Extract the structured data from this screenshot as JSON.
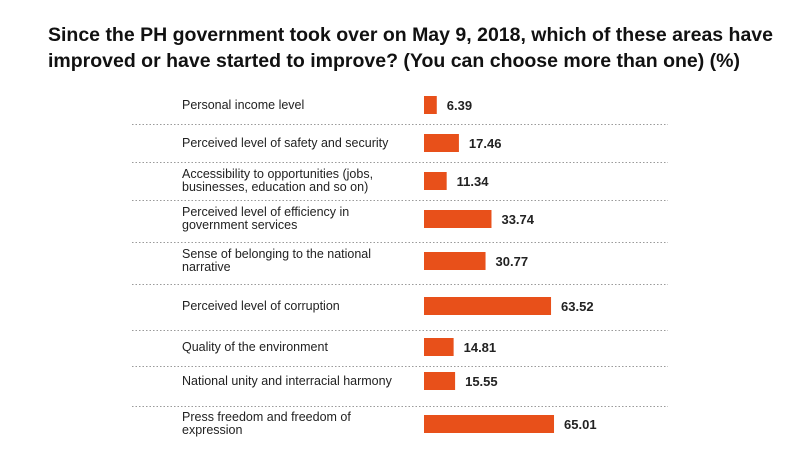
{
  "title": {
    "line1": "Since the PH government took over on May 9, 2018, which of these areas have",
    "line2": "improved or have started to improve? (You can choose more than one) (%)"
  },
  "colors": {
    "bar": "#e8501a",
    "text": "#222222",
    "separator": "#9a9a9a"
  },
  "chart_data": {
    "type": "bar",
    "orientation": "horizontal",
    "categories": [
      [
        "Personal income level"
      ],
      [
        "Perceived level of safety and security"
      ],
      [
        "Accessibility to opportunities (jobs,",
        "businesses, education and so on)"
      ],
      [
        "Perceived level of efficiency in",
        "government services"
      ],
      [
        "Sense of belonging to the national",
        "narrative"
      ],
      [
        "Perceived level of corruption"
      ],
      [
        "Quality of the environment"
      ],
      [
        "National unity and interracial harmony"
      ],
      [
        "Press freedom and freedom of",
        "expression"
      ]
    ],
    "values": [
      6.39,
      17.46,
      11.34,
      33.74,
      30.77,
      63.52,
      14.81,
      15.55,
      65.01
    ],
    "value_labels": [
      "6.39",
      "17.46",
      "11.34",
      "33.74",
      "30.77",
      "63.52",
      "14.81",
      "15.55",
      "65.01"
    ],
    "xlim": [
      0,
      100
    ],
    "grid": false,
    "legend": "none"
  }
}
